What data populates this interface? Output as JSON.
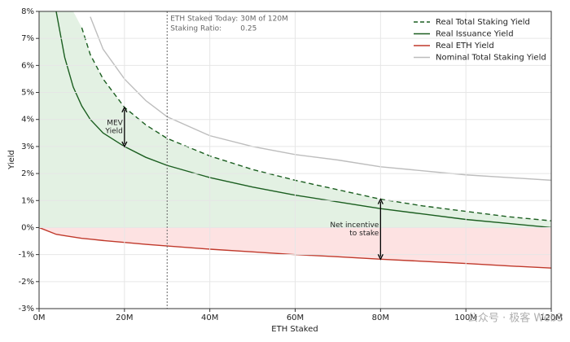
{
  "chart_data": {
    "type": "line",
    "x_label": "ETH Staked",
    "y_label": "Yield",
    "x": [
      0,
      4,
      6,
      8,
      10,
      12,
      15,
      20,
      25,
      30,
      40,
      50,
      60,
      70,
      80,
      90,
      100,
      110,
      120
    ],
    "series": [
      {
        "name": "Real Total Staking Yield",
        "color": "#1b5e20",
        "dash": true,
        "values": [
          null,
          null,
          null,
          null,
          7.4,
          6.4,
          5.5,
          4.45,
          3.8,
          3.3,
          2.65,
          2.15,
          1.75,
          1.4,
          1.05,
          0.8,
          0.6,
          0.4,
          0.25
        ]
      },
      {
        "name": "Real Issuance Yield",
        "color": "#1b5e20",
        "values": [
          null,
          8.0,
          6.3,
          5.2,
          4.5,
          4.0,
          3.5,
          3.0,
          2.6,
          2.3,
          1.85,
          1.5,
          1.2,
          0.95,
          0.7,
          0.5,
          0.3,
          0.15,
          0.0
        ]
      },
      {
        "name": "Real ETH Yield",
        "color": "#c0392b",
        "values": [
          0,
          -0.25,
          -0.3,
          -0.35,
          -0.4,
          -0.43,
          -0.48,
          -0.55,
          -0.62,
          -0.68,
          -0.8,
          -0.9,
          -1.0,
          -1.08,
          -1.17,
          -1.25,
          -1.33,
          -1.42,
          -1.5
        ]
      },
      {
        "name": "Nominal Total Staking Yield",
        "color": "#bdbdbd",
        "values": [
          null,
          null,
          null,
          null,
          null,
          7.8,
          6.6,
          5.5,
          4.7,
          4.1,
          3.4,
          3.0,
          2.7,
          2.5,
          2.25,
          2.1,
          1.95,
          1.85,
          1.75
        ]
      }
    ],
    "positive_fill": "#e3f1e3",
    "negative_fill": "#fde2e2",
    "xlim": [
      0,
      120
    ],
    "ylim": [
      -3,
      8
    ],
    "xticks": [
      {
        "value": 0,
        "label": "0M"
      },
      {
        "value": 20,
        "label": "20M"
      },
      {
        "value": 40,
        "label": "40M"
      },
      {
        "value": 60,
        "label": "60M"
      },
      {
        "value": 80,
        "label": "80M"
      },
      {
        "value": 100,
        "label": "100M"
      },
      {
        "value": 120,
        "label": "120M"
      }
    ],
    "yticks": [
      {
        "value": -3,
        "label": "-3%"
      },
      {
        "value": -2,
        "label": "-2%"
      },
      {
        "value": -1,
        "label": "-1%"
      },
      {
        "value": 0,
        "label": "0%"
      },
      {
        "value": 1,
        "label": "1%"
      },
      {
        "value": 2,
        "label": "2%"
      },
      {
        "value": 3,
        "label": "3%"
      },
      {
        "value": 4,
        "label": "4%"
      },
      {
        "value": 5,
        "label": "5%"
      },
      {
        "value": 6,
        "label": "6%"
      },
      {
        "value": 7,
        "label": "7%"
      },
      {
        "value": 8,
        "label": "8%"
      }
    ],
    "grid": true,
    "legend": "upper right",
    "today_marker": {
      "x": 30,
      "rows": [
        [
          "ETH Staked Today:",
          "30M of 120M"
        ],
        [
          "Staking Ratio:",
          "0.25"
        ]
      ]
    },
    "annotations": [
      {
        "x": 20,
        "lines": [
          "MEV",
          "Yield"
        ]
      },
      {
        "x": 80,
        "lines": [
          "Net incentive",
          "to stake"
        ]
      }
    ],
    "watermark": "公众号 · 极客 Web3"
  }
}
